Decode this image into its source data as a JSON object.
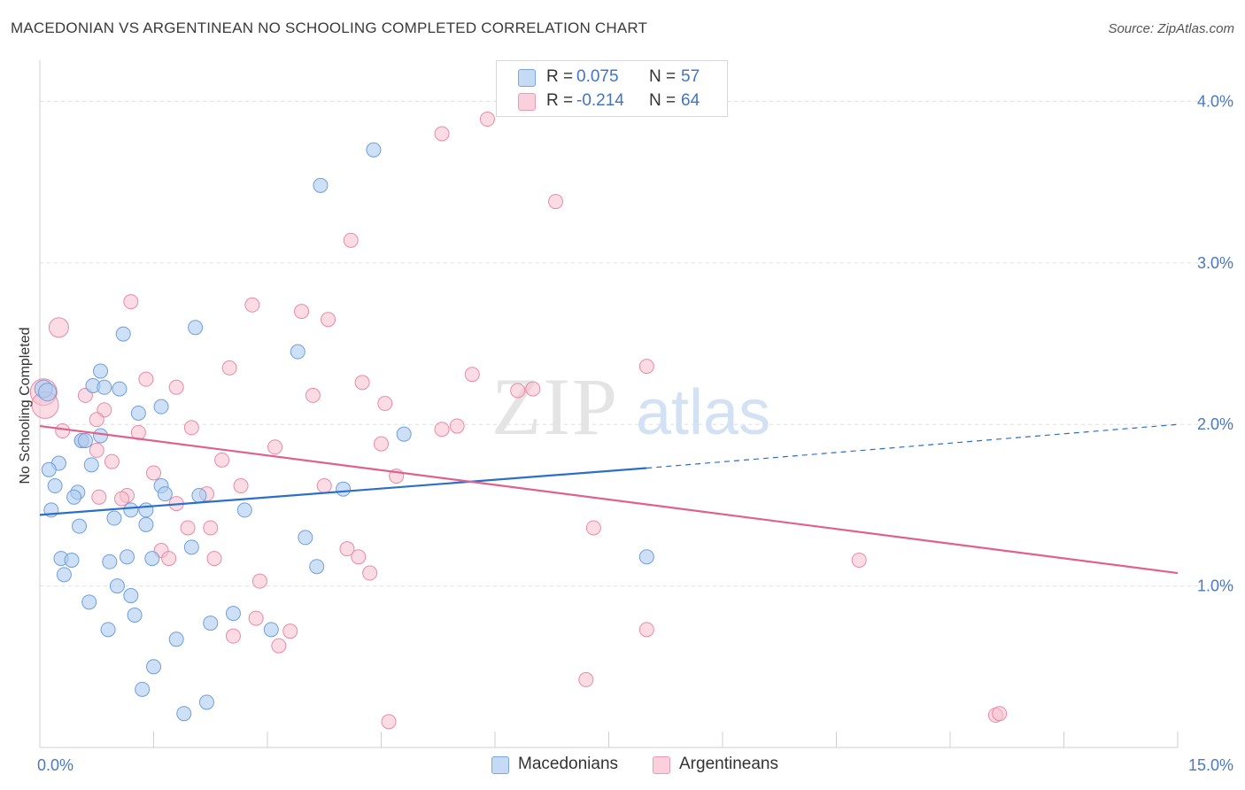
{
  "title": "MACEDONIAN VS ARGENTINEAN NO SCHOOLING COMPLETED CORRELATION CHART",
  "source": "Source: ZipAtlas.com",
  "watermark": {
    "zip": "ZIP",
    "atlas": "atlas"
  },
  "legend": {
    "rows": [
      {
        "r_label": "R =",
        "r_value": "0.075",
        "n_label": "N =",
        "n_value": "57"
      },
      {
        "r_label": "R =",
        "r_value": "-0.214",
        "n_label": "N =",
        "n_value": "64"
      }
    ]
  },
  "bottom_legend": {
    "series1": "Macedonians",
    "series2": "Argentineans"
  },
  "colors": {
    "blue_fill": "#aecbf0",
    "blue_stroke": "#6f9fdd",
    "blue_line": "#2c6fc9",
    "pink_fill": "#f7bfd0",
    "pink_stroke": "#e98aa7",
    "pink_line": "#e0608e",
    "grid": "#e0e0e0",
    "tick_text": "#4a78c4"
  },
  "chart_data": {
    "type": "scatter",
    "title": "MACEDONIAN VS ARGENTINEAN NO SCHOOLING COMPLETED CORRELATION CHART",
    "xlabel": "",
    "ylabel": "No Schooling Completed",
    "xlim": [
      0,
      15
    ],
    "ylim": [
      0,
      4.2
    ],
    "x_tick_labels": [
      "0.0%",
      "15.0%"
    ],
    "y_ticks": [
      1.0,
      2.0,
      3.0,
      4.0
    ],
    "y_tick_labels": [
      "1.0%",
      "2.0%",
      "3.0%",
      "4.0%"
    ],
    "grid": true,
    "legend_position": "top-center",
    "series": [
      {
        "name": "Macedonians",
        "r": 0.075,
        "n": 57,
        "trend": {
          "x_start": 0.0,
          "y_start": 1.44,
          "x_end_solid": 8.0,
          "y_end_solid": 1.73,
          "x_end_dashed": 15.0,
          "y_end_dashed": 2.0
        },
        "points": [
          [
            4.4,
            3.7
          ],
          [
            3.7,
            3.48
          ],
          [
            1.1,
            2.56
          ],
          [
            3.4,
            2.45
          ],
          [
            0.8,
            2.33
          ],
          [
            0.7,
            2.24
          ],
          [
            0.85,
            2.23
          ],
          [
            1.05,
            2.22
          ],
          [
            0.05,
            2.22
          ],
          [
            0.1,
            2.2
          ],
          [
            1.6,
            2.11
          ],
          [
            1.3,
            2.07
          ],
          [
            4.8,
            1.94
          ],
          [
            0.8,
            1.93
          ],
          [
            0.55,
            1.9
          ],
          [
            0.6,
            1.9
          ],
          [
            0.25,
            1.76
          ],
          [
            0.68,
            1.75
          ],
          [
            0.12,
            1.72
          ],
          [
            0.2,
            1.62
          ],
          [
            1.6,
            1.62
          ],
          [
            4.0,
            1.6
          ],
          [
            0.5,
            1.58
          ],
          [
            1.65,
            1.57
          ],
          [
            0.45,
            1.55
          ],
          [
            2.1,
            1.56
          ],
          [
            2.7,
            1.47
          ],
          [
            0.15,
            1.47
          ],
          [
            1.2,
            1.47
          ],
          [
            1.4,
            1.47
          ],
          [
            0.98,
            1.42
          ],
          [
            1.4,
            1.38
          ],
          [
            0.52,
            1.37
          ],
          [
            3.5,
            1.3
          ],
          [
            2.0,
            1.24
          ],
          [
            8.0,
            1.18
          ],
          [
            0.28,
            1.17
          ],
          [
            0.42,
            1.16
          ],
          [
            1.15,
            1.18
          ],
          [
            1.48,
            1.17
          ],
          [
            0.92,
            1.15
          ],
          [
            3.65,
            1.12
          ],
          [
            0.32,
            1.07
          ],
          [
            1.02,
            1.0
          ],
          [
            1.2,
            0.94
          ],
          [
            0.65,
            0.9
          ],
          [
            2.55,
            0.83
          ],
          [
            1.25,
            0.82
          ],
          [
            2.25,
            0.77
          ],
          [
            0.9,
            0.73
          ],
          [
            3.05,
            0.73
          ],
          [
            1.8,
            0.67
          ],
          [
            1.5,
            0.5
          ],
          [
            1.35,
            0.36
          ],
          [
            2.2,
            0.28
          ],
          [
            1.9,
            0.21
          ],
          [
            2.05,
            2.6
          ]
        ]
      },
      {
        "name": "Argentineans",
        "r": -0.214,
        "n": 64,
        "trend": {
          "x_start": 0.0,
          "y_start": 1.99,
          "x_end_solid": 15.0,
          "y_end_solid": 1.08
        },
        "points": [
          [
            5.9,
            3.89
          ],
          [
            5.3,
            3.8
          ],
          [
            6.8,
            3.38
          ],
          [
            4.1,
            3.14
          ],
          [
            1.2,
            2.76
          ],
          [
            2.8,
            2.74
          ],
          [
            3.45,
            2.7
          ],
          [
            3.8,
            2.65
          ],
          [
            0.25,
            2.6
          ],
          [
            8.0,
            2.36
          ],
          [
            2.5,
            2.35
          ],
          [
            5.7,
            2.31
          ],
          [
            1.4,
            2.28
          ],
          [
            4.25,
            2.26
          ],
          [
            1.8,
            2.23
          ],
          [
            6.5,
            2.22
          ],
          [
            6.3,
            2.21
          ],
          [
            0.05,
            2.2
          ],
          [
            0.6,
            2.18
          ],
          [
            3.6,
            2.18
          ],
          [
            4.55,
            2.13
          ],
          [
            0.07,
            2.12
          ],
          [
            0.85,
            2.09
          ],
          [
            5.5,
            1.99
          ],
          [
            2.0,
            1.98
          ],
          [
            5.3,
            1.97
          ],
          [
            0.3,
            1.96
          ],
          [
            1.3,
            1.95
          ],
          [
            0.55,
            1.9
          ],
          [
            0.75,
            1.84
          ],
          [
            4.5,
            1.88
          ],
          [
            3.1,
            1.86
          ],
          [
            0.75,
            2.03
          ],
          [
            2.4,
            1.78
          ],
          [
            0.95,
            1.77
          ],
          [
            1.5,
            1.7
          ],
          [
            4.7,
            1.68
          ],
          [
            2.65,
            1.62
          ],
          [
            3.75,
            1.62
          ],
          [
            2.2,
            1.57
          ],
          [
            1.15,
            1.56
          ],
          [
            0.78,
            1.55
          ],
          [
            1.08,
            1.54
          ],
          [
            1.8,
            1.51
          ],
          [
            7.3,
            1.36
          ],
          [
            1.95,
            1.36
          ],
          [
            2.25,
            1.36
          ],
          [
            4.05,
            1.23
          ],
          [
            1.6,
            1.22
          ],
          [
            4.2,
            1.18
          ],
          [
            1.7,
            1.17
          ],
          [
            2.3,
            1.17
          ],
          [
            10.8,
            1.16
          ],
          [
            4.35,
            1.08
          ],
          [
            2.9,
            1.03
          ],
          [
            2.85,
            0.8
          ],
          [
            3.3,
            0.72
          ],
          [
            8.0,
            0.73
          ],
          [
            2.55,
            0.69
          ],
          [
            3.15,
            0.63
          ],
          [
            7.2,
            0.42
          ],
          [
            12.6,
            0.2
          ],
          [
            12.65,
            0.21
          ],
          [
            4.6,
            0.16
          ]
        ]
      }
    ]
  }
}
